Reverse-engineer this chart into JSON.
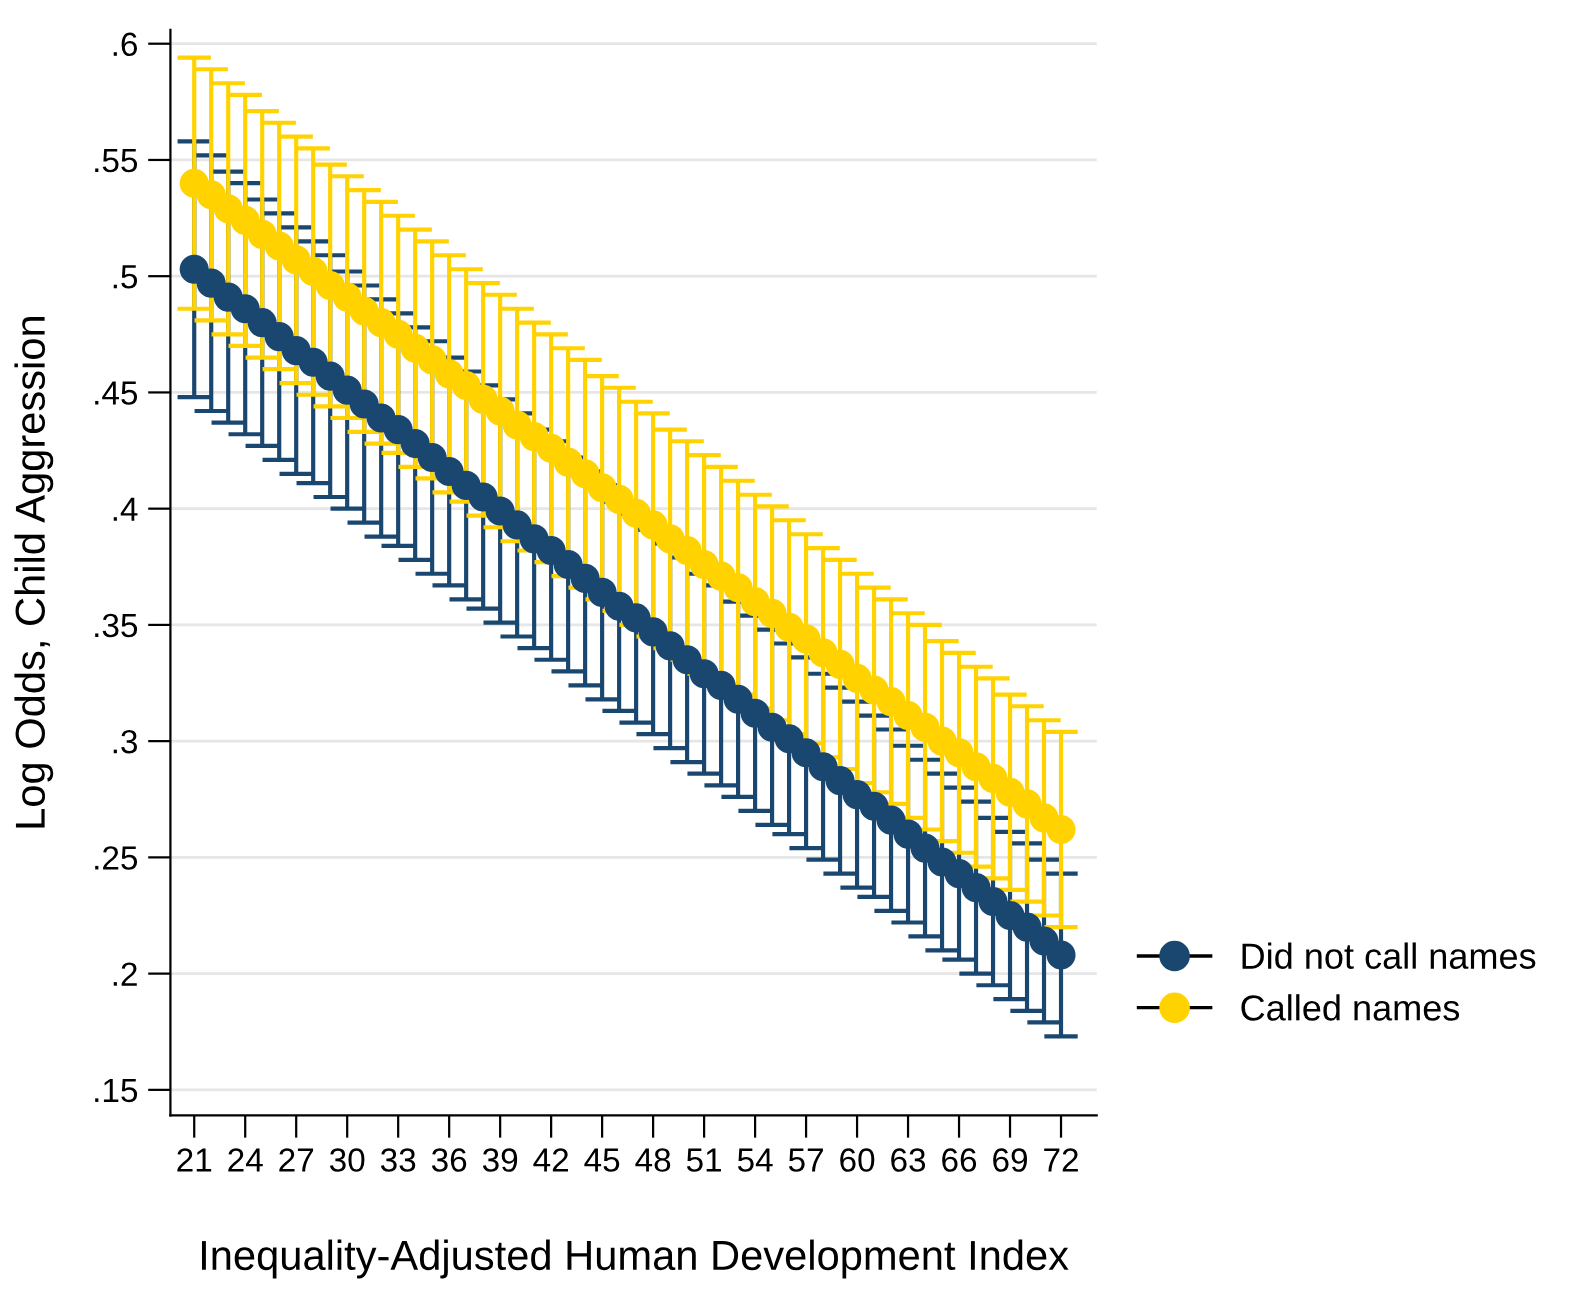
{
  "chart_data": {
    "type": "scatter",
    "xlabel": "Inequality-Adjusted Human Development Index",
    "ylabel": "Log Odds, Child Aggression",
    "x": [
      21,
      22,
      23,
      24,
      25,
      26,
      27,
      28,
      29,
      30,
      31,
      32,
      33,
      34,
      35,
      36,
      37,
      38,
      39,
      40,
      41,
      42,
      43,
      44,
      45,
      46,
      47,
      48,
      49,
      50,
      51,
      52,
      53,
      54,
      55,
      56,
      57,
      58,
      59,
      60,
      61,
      62,
      63,
      64,
      65,
      66,
      67,
      68,
      69,
      70,
      71,
      72
    ],
    "series": [
      {
        "name": "Did not call names",
        "color": "#1a476f",
        "values": [
          0.503,
          0.497,
          0.491,
          0.486,
          0.48,
          0.474,
          0.468,
          0.463,
          0.457,
          0.451,
          0.445,
          0.439,
          0.434,
          0.428,
          0.422,
          0.416,
          0.41,
          0.405,
          0.399,
          0.393,
          0.387,
          0.382,
          0.376,
          0.37,
          0.364,
          0.358,
          0.353,
          0.347,
          0.341,
          0.335,
          0.329,
          0.324,
          0.318,
          0.312,
          0.306,
          0.301,
          0.295,
          0.289,
          0.283,
          0.277,
          0.272,
          0.266,
          0.26,
          0.254,
          0.248,
          0.243,
          0.237,
          0.231,
          0.225,
          0.22,
          0.214,
          0.208
        ],
        "errors": [
          0.055,
          0.055,
          0.054,
          0.054,
          0.053,
          0.053,
          0.053,
          0.052,
          0.052,
          0.051,
          0.051,
          0.051,
          0.05,
          0.05,
          0.05,
          0.049,
          0.049,
          0.048,
          0.048,
          0.048,
          0.047,
          0.047,
          0.046,
          0.046,
          0.046,
          0.045,
          0.045,
          0.044,
          0.044,
          0.044,
          0.043,
          0.043,
          0.042,
          0.042,
          0.042,
          0.041,
          0.041,
          0.04,
          0.04,
          0.04,
          0.039,
          0.039,
          0.038,
          0.038,
          0.038,
          0.037,
          0.037,
          0.036,
          0.036,
          0.036,
          0.035,
          0.035
        ]
      },
      {
        "name": "Called names",
        "color": "#ffd200",
        "values": [
          0.54,
          0.535,
          0.529,
          0.524,
          0.518,
          0.513,
          0.507,
          0.502,
          0.496,
          0.491,
          0.485,
          0.48,
          0.475,
          0.469,
          0.464,
          0.458,
          0.453,
          0.447,
          0.442,
          0.436,
          0.431,
          0.426,
          0.42,
          0.415,
          0.409,
          0.404,
          0.398,
          0.393,
          0.387,
          0.382,
          0.376,
          0.371,
          0.366,
          0.36,
          0.355,
          0.349,
          0.344,
          0.338,
          0.333,
          0.327,
          0.322,
          0.317,
          0.311,
          0.306,
          0.3,
          0.295,
          0.289,
          0.284,
          0.278,
          0.273,
          0.267,
          0.262
        ],
        "errors": [
          0.054,
          0.054,
          0.054,
          0.054,
          0.053,
          0.053,
          0.053,
          0.053,
          0.052,
          0.052,
          0.052,
          0.052,
          0.051,
          0.051,
          0.051,
          0.051,
          0.05,
          0.05,
          0.05,
          0.05,
          0.049,
          0.049,
          0.049,
          0.049,
          0.048,
          0.048,
          0.048,
          0.048,
          0.047,
          0.047,
          0.047,
          0.047,
          0.046,
          0.046,
          0.046,
          0.046,
          0.045,
          0.045,
          0.045,
          0.045,
          0.044,
          0.044,
          0.044,
          0.044,
          0.043,
          0.043,
          0.043,
          0.043,
          0.042,
          0.042,
          0.042,
          0.042
        ]
      }
    ],
    "xlim": [
      19.6,
      74.1
    ],
    "xticks": [
      21,
      24,
      27,
      30,
      33,
      36,
      39,
      42,
      45,
      48,
      51,
      54,
      57,
      60,
      63,
      66,
      69,
      72
    ],
    "ylim": [
      0.139,
      0.606
    ],
    "yticks": [
      {
        "value": 0.15,
        "label": ".15"
      },
      {
        "value": 0.2,
        "label": ".2"
      },
      {
        "value": 0.25,
        "label": ".25"
      },
      {
        "value": 0.3,
        "label": ".3"
      },
      {
        "value": 0.35,
        "label": ".35"
      },
      {
        "value": 0.4,
        "label": ".4"
      },
      {
        "value": 0.45,
        "label": ".45"
      },
      {
        "value": 0.5,
        "label": ".5"
      },
      {
        "value": 0.55,
        "label": ".55"
      },
      {
        "value": 0.6,
        "label": ".6"
      }
    ],
    "grid": "y",
    "legend": "right",
    "marker": "circle"
  }
}
